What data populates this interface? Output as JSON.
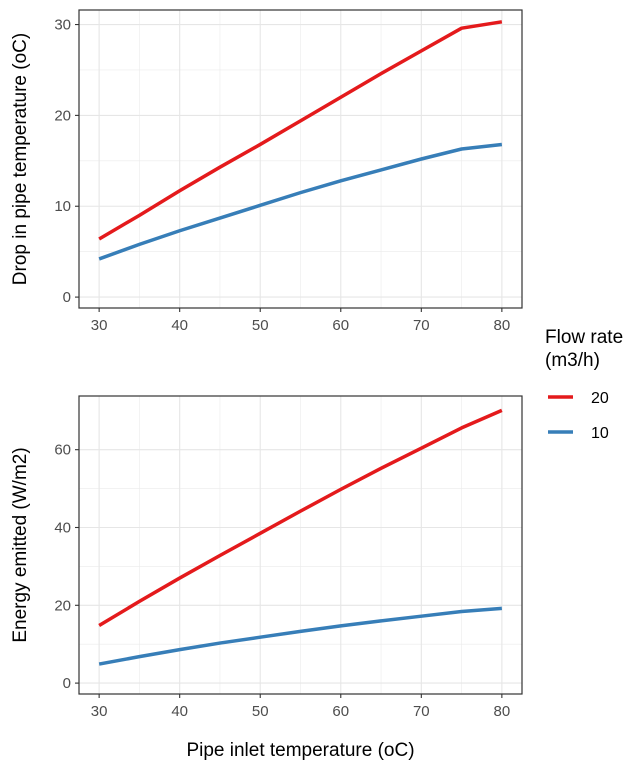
{
  "chart_data": [
    {
      "type": "line",
      "title": "",
      "xlabel": "",
      "ylabel": "Drop in pipe temperature (oC)",
      "xlim": [
        27.5,
        82.5
      ],
      "ylim": [
        -1.2,
        31.6
      ],
      "xticks": [
        30,
        40,
        50,
        60,
        70,
        80
      ],
      "yticks": [
        0,
        10,
        20,
        30
      ],
      "grid": true,
      "series": [
        {
          "name": "20",
          "color": "#e41a1c",
          "x": [
            30,
            35,
            40,
            45,
            50,
            55,
            60,
            65,
            70,
            75,
            80
          ],
          "y": [
            6.4,
            9.0,
            11.7,
            14.3,
            16.8,
            19.4,
            22.0,
            24.6,
            27.1,
            29.6,
            30.3
          ]
        },
        {
          "name": "10",
          "color": "#377eb8",
          "x": [
            30,
            35,
            40,
            45,
            50,
            55,
            60,
            65,
            70,
            75,
            80
          ],
          "y": [
            4.2,
            5.8,
            7.3,
            8.7,
            10.1,
            11.5,
            12.8,
            14.0,
            15.2,
            16.3,
            16.8
          ]
        }
      ]
    },
    {
      "type": "line",
      "title": "",
      "xlabel": "Pipe inlet temperature (oC)",
      "ylabel": "Energy emitted (W/m2)",
      "xlim": [
        27.5,
        82.5
      ],
      "ylim": [
        -2.8,
        73.8
      ],
      "xticks": [
        30,
        40,
        50,
        60,
        70,
        80
      ],
      "yticks": [
        0,
        20,
        40,
        60
      ],
      "grid": true,
      "series": [
        {
          "name": "20",
          "color": "#e41a1c",
          "x": [
            30,
            35,
            40,
            45,
            50,
            55,
            60,
            65,
            70,
            75,
            80
          ],
          "y": [
            14.8,
            21.0,
            27.0,
            32.8,
            38.5,
            44.2,
            49.8,
            55.2,
            60.4,
            65.6,
            70.1
          ]
        },
        {
          "name": "10",
          "color": "#377eb8",
          "x": [
            30,
            35,
            40,
            45,
            50,
            55,
            60,
            65,
            70,
            75,
            80
          ],
          "y": [
            4.9,
            6.8,
            8.6,
            10.3,
            11.8,
            13.3,
            14.7,
            16.0,
            17.2,
            18.4,
            19.2
          ]
        }
      ]
    }
  ],
  "legend": {
    "title_lines": [
      "Flow rate",
      "(m3/h)"
    ],
    "placement": "right",
    "items": [
      {
        "label": "20",
        "color": "#e41a1c"
      },
      {
        "label": "10",
        "color": "#377eb8"
      }
    ]
  }
}
